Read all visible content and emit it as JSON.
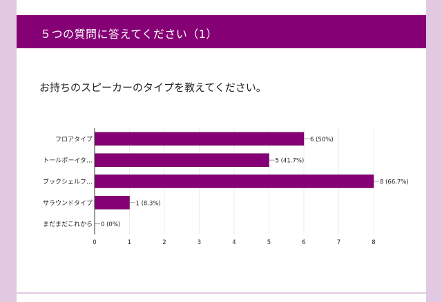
{
  "header": {
    "title": "５つの質問に答えてください（1）"
  },
  "question": {
    "text": "お持ちのスピーカーのタイプを教えてください。"
  },
  "colors": {
    "accent": "#860075",
    "background": "#e1cae1",
    "card": "#ffffff"
  },
  "chart_data": {
    "type": "bar",
    "orientation": "horizontal",
    "categories": [
      "フロアタイプ",
      "トールボーイタ…",
      "ブックシェルフ…",
      "サラウンドタイプ",
      "まだまだこれから"
    ],
    "values": [
      6,
      5,
      8,
      1,
      0
    ],
    "value_labels": [
      "6 (50%)",
      "5 (41.7%)",
      "8 (66.7%)",
      "1 (8.3%)",
      "0 (0%)"
    ],
    "xticks": [
      0,
      1,
      2,
      3,
      4,
      5,
      6,
      7,
      8
    ],
    "xlim": [
      0,
      8
    ],
    "grid": true,
    "bar_color": "#860075"
  }
}
